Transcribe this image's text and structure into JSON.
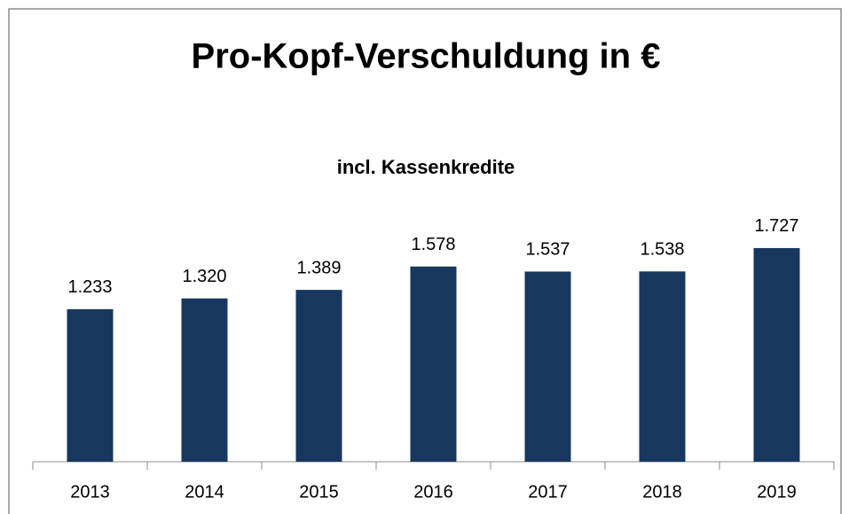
{
  "chart_data": {
    "type": "bar",
    "title": "Pro-Kopf-Verschuldung in €",
    "subtitle": "incl. Kassenkredite",
    "categories": [
      "2013",
      "2014",
      "2015",
      "2016",
      "2017",
      "2018",
      "2019"
    ],
    "values": [
      1233,
      1320,
      1389,
      1578,
      1537,
      1538,
      1727
    ],
    "value_labels": [
      "1.233",
      "1.320",
      "1.389",
      "1.578",
      "1.537",
      "1.538",
      "1.727"
    ],
    "color": "#17375e"
  }
}
